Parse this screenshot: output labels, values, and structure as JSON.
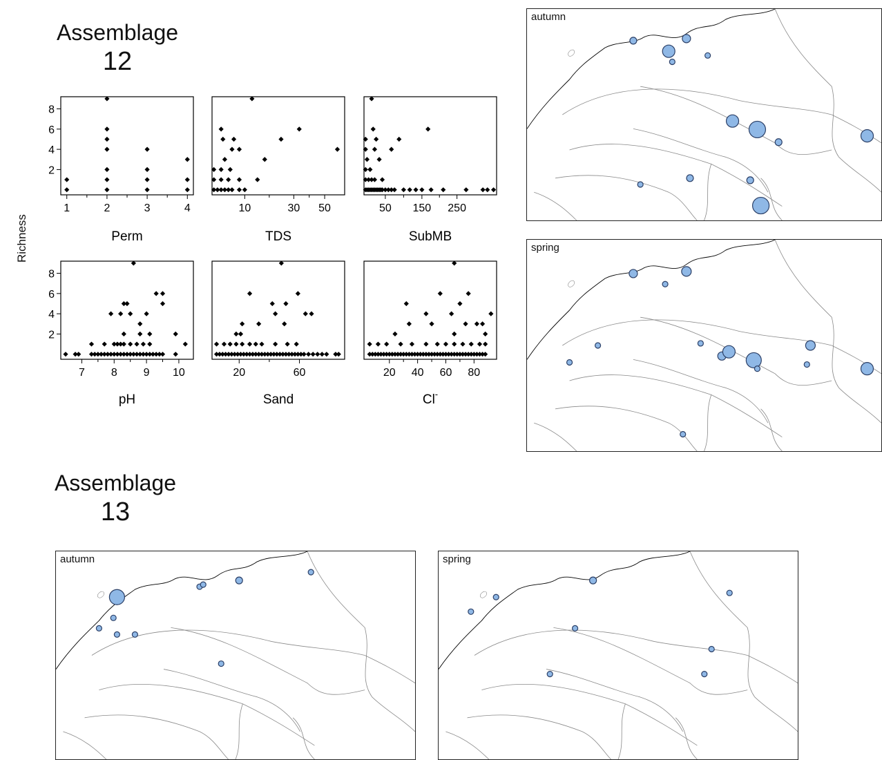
{
  "headings": {
    "a12_word": "Assemblage",
    "a12_num": "12",
    "a13_word": "Assemblage",
    "a13_num": "13"
  },
  "shared_ylabel": "Richness",
  "colors": {
    "point": "#000000",
    "bubble_fill": "#8fb8e6",
    "bubble_stroke": "#2b3f66",
    "coast": "#000000",
    "river": "#888888"
  },
  "chart_data": [
    {
      "type": "scatter",
      "xlabel": "Perm",
      "ylabel": "Richness",
      "xlim": [
        0.85,
        4.15
      ],
      "ylim": [
        -0.5,
        9.2
      ],
      "xticks": [
        "1",
        "2",
        "3",
        "4"
      ],
      "xtick_vals": [
        1,
        2,
        3,
        4
      ],
      "yticks": [
        "2",
        "4",
        "6",
        "8"
      ],
      "ytick_vals": [
        2,
        4,
        6,
        8
      ],
      "points": [
        [
          1,
          0
        ],
        [
          1,
          1
        ],
        [
          2,
          0
        ],
        [
          2,
          1
        ],
        [
          2,
          2
        ],
        [
          2,
          4
        ],
        [
          2,
          5
        ],
        [
          2,
          6
        ],
        [
          2,
          9
        ],
        [
          3,
          0
        ],
        [
          3,
          1
        ],
        [
          3,
          2
        ],
        [
          3,
          4
        ],
        [
          4,
          0
        ],
        [
          4,
          1
        ],
        [
          4,
          3
        ]
      ]
    },
    {
      "type": "scatter",
      "xlabel": "TDS",
      "ylabel": "Richness",
      "xlim": [
        0.5,
        7.8
      ],
      "ylim": [
        -0.5,
        9.2
      ],
      "xticks": [
        "10",
        "30",
        "50"
      ],
      "xtick_vals": [
        2.3,
        5.0,
        6.7
      ],
      "yticks": [
        "2",
        "4",
        "6",
        "8"
      ],
      "ytick_vals": [
        2,
        4,
        6,
        8
      ],
      "points": [
        [
          0.6,
          0
        ],
        [
          0.8,
          0
        ],
        [
          1.0,
          0
        ],
        [
          1.2,
          0
        ],
        [
          1.4,
          0
        ],
        [
          1.6,
          0
        ],
        [
          2.0,
          0
        ],
        [
          2.3,
          0
        ],
        [
          0.6,
          1
        ],
        [
          1.0,
          1
        ],
        [
          1.4,
          1
        ],
        [
          2.0,
          1
        ],
        [
          3.0,
          1
        ],
        [
          0.6,
          2
        ],
        [
          1.0,
          2
        ],
        [
          1.5,
          2
        ],
        [
          1.2,
          3
        ],
        [
          3.4,
          3
        ],
        [
          1.6,
          4
        ],
        [
          2.0,
          4
        ],
        [
          1.1,
          5
        ],
        [
          1.7,
          5
        ],
        [
          4.3,
          5
        ],
        [
          1.0,
          6
        ],
        [
          5.3,
          6
        ],
        [
          7.4,
          4
        ],
        [
          2.7,
          9
        ]
      ]
    },
    {
      "type": "scatter",
      "xlabel": "SubMB",
      "ylabel": "Richness",
      "xlim": [
        0.6,
        9.3
      ],
      "ylim": [
        -0.5,
        9.2
      ],
      "xticks": [
        "50",
        "150",
        "250"
      ],
      "xtick_vals": [
        2.0,
        4.4,
        6.7
      ],
      "yticks": [
        "2",
        "4",
        "6",
        "8"
      ],
      "ytick_vals": [
        2,
        4,
        6,
        8
      ],
      "points": [
        [
          0.7,
          0
        ],
        [
          0.8,
          0
        ],
        [
          0.9,
          0
        ],
        [
          1.0,
          0
        ],
        [
          1.1,
          0
        ],
        [
          1.2,
          0
        ],
        [
          1.3,
          0
        ],
        [
          1.4,
          0
        ],
        [
          1.5,
          0
        ],
        [
          1.6,
          0
        ],
        [
          1.7,
          0
        ],
        [
          1.8,
          0
        ],
        [
          2.0,
          0
        ],
        [
          2.2,
          0
        ],
        [
          2.4,
          0
        ],
        [
          2.6,
          0
        ],
        [
          3.2,
          0
        ],
        [
          3.6,
          0
        ],
        [
          4.0,
          0
        ],
        [
          4.4,
          0
        ],
        [
          5.0,
          0
        ],
        [
          5.8,
          0
        ],
        [
          7.3,
          0
        ],
        [
          8.4,
          0
        ],
        [
          8.7,
          0
        ],
        [
          9.1,
          0
        ],
        [
          0.7,
          1
        ],
        [
          0.9,
          1
        ],
        [
          1.1,
          1
        ],
        [
          1.3,
          1
        ],
        [
          1.8,
          1
        ],
        [
          0.7,
          2
        ],
        [
          1.0,
          2
        ],
        [
          0.8,
          3
        ],
        [
          1.6,
          3
        ],
        [
          0.7,
          4
        ],
        [
          1.3,
          4
        ],
        [
          2.4,
          4
        ],
        [
          0.7,
          5
        ],
        [
          1.4,
          5
        ],
        [
          2.9,
          5
        ],
        [
          1.2,
          6
        ],
        [
          4.8,
          6
        ],
        [
          1.1,
          9
        ]
      ]
    },
    {
      "type": "scatter",
      "xlabel": "pH",
      "ylabel": "Richness",
      "xlim": [
        6.35,
        10.45
      ],
      "ylim": [
        -0.5,
        9.2
      ],
      "xticks": [
        "7",
        "8",
        "9",
        "10"
      ],
      "xtick_vals": [
        7,
        8,
        9,
        10
      ],
      "yticks": [
        "2",
        "4",
        "6",
        "8"
      ],
      "ytick_vals": [
        2,
        4,
        6,
        8
      ],
      "points": [
        [
          6.5,
          0
        ],
        [
          6.8,
          0
        ],
        [
          6.9,
          0
        ],
        [
          7.3,
          0
        ],
        [
          7.4,
          0
        ],
        [
          7.5,
          0
        ],
        [
          7.6,
          0
        ],
        [
          7.7,
          0
        ],
        [
          7.8,
          0
        ],
        [
          7.9,
          0
        ],
        [
          8.0,
          0
        ],
        [
          8.1,
          0
        ],
        [
          8.2,
          0
        ],
        [
          8.3,
          0
        ],
        [
          8.4,
          0
        ],
        [
          8.5,
          0
        ],
        [
          8.6,
          0
        ],
        [
          8.7,
          0
        ],
        [
          8.8,
          0
        ],
        [
          8.9,
          0
        ],
        [
          9.0,
          0
        ],
        [
          9.1,
          0
        ],
        [
          9.2,
          0
        ],
        [
          9.3,
          0
        ],
        [
          9.4,
          0
        ],
        [
          9.5,
          0
        ],
        [
          9.9,
          0
        ],
        [
          7.3,
          1
        ],
        [
          7.7,
          1
        ],
        [
          8.0,
          1
        ],
        [
          8.1,
          1
        ],
        [
          8.2,
          1
        ],
        [
          8.3,
          1
        ],
        [
          8.5,
          1
        ],
        [
          8.7,
          1
        ],
        [
          8.9,
          1
        ],
        [
          9.1,
          1
        ],
        [
          10.2,
          1
        ],
        [
          8.3,
          2
        ],
        [
          8.8,
          2
        ],
        [
          9.1,
          2
        ],
        [
          9.9,
          2
        ],
        [
          8.8,
          3
        ],
        [
          7.9,
          4
        ],
        [
          8.2,
          4
        ],
        [
          8.5,
          4
        ],
        [
          9.0,
          4
        ],
        [
          8.3,
          5
        ],
        [
          8.4,
          5
        ],
        [
          9.5,
          5
        ],
        [
          9.3,
          6
        ],
        [
          9.5,
          6
        ],
        [
          8.6,
          9
        ]
      ]
    },
    {
      "type": "scatter",
      "xlabel": "Sand",
      "ylabel": "Richness",
      "xlim": [
        2,
        90
      ],
      "ylim": [
        -0.5,
        9.2
      ],
      "xticks": [
        "20",
        "60"
      ],
      "xtick_vals": [
        20,
        60
      ],
      "yticks": [
        "2",
        "4",
        "6",
        "8"
      ],
      "ytick_vals": [
        2,
        4,
        6,
        8
      ],
      "points": [
        [
          5,
          0
        ],
        [
          7,
          0
        ],
        [
          9,
          0
        ],
        [
          11,
          0
        ],
        [
          13,
          0
        ],
        [
          15,
          0
        ],
        [
          17,
          0
        ],
        [
          19,
          0
        ],
        [
          21,
          0
        ],
        [
          23,
          0
        ],
        [
          25,
          0
        ],
        [
          27,
          0
        ],
        [
          29,
          0
        ],
        [
          31,
          0
        ],
        [
          33,
          0
        ],
        [
          35,
          0
        ],
        [
          37,
          0
        ],
        [
          39,
          0
        ],
        [
          41,
          0
        ],
        [
          43,
          0
        ],
        [
          45,
          0
        ],
        [
          47,
          0
        ],
        [
          49,
          0
        ],
        [
          51,
          0
        ],
        [
          53,
          0
        ],
        [
          55,
          0
        ],
        [
          57,
          0
        ],
        [
          59,
          0
        ],
        [
          61,
          0
        ],
        [
          63,
          0
        ],
        [
          66,
          0
        ],
        [
          69,
          0
        ],
        [
          72,
          0
        ],
        [
          75,
          0
        ],
        [
          78,
          0
        ],
        [
          84,
          0
        ],
        [
          86,
          0
        ],
        [
          5,
          1
        ],
        [
          10,
          1
        ],
        [
          14,
          1
        ],
        [
          18,
          1
        ],
        [
          22,
          1
        ],
        [
          27,
          1
        ],
        [
          31,
          1
        ],
        [
          35,
          1
        ],
        [
          44,
          1
        ],
        [
          52,
          1
        ],
        [
          58,
          1
        ],
        [
          18,
          2
        ],
        [
          21,
          2
        ],
        [
          22,
          3
        ],
        [
          33,
          3
        ],
        [
          50,
          3
        ],
        [
          44,
          4
        ],
        [
          64,
          4
        ],
        [
          68,
          4
        ],
        [
          42,
          5
        ],
        [
          51,
          5
        ],
        [
          27,
          6
        ],
        [
          59,
          6
        ],
        [
          48,
          9
        ]
      ]
    },
    {
      "type": "scatter",
      "xlabel": "Cl",
      "xlabel_sup": "-",
      "ylabel": "Richness",
      "xlim": [
        2,
        96
      ],
      "ylim": [
        -0.5,
        9.2
      ],
      "xticks": [
        "20",
        "40",
        "60",
        "80"
      ],
      "xtick_vals": [
        20,
        40,
        60,
        80
      ],
      "yticks": [
        "2",
        "4",
        "6",
        "8"
      ],
      "ytick_vals": [
        2,
        4,
        6,
        8
      ],
      "points": [
        [
          6,
          0
        ],
        [
          8,
          0
        ],
        [
          10,
          0
        ],
        [
          12,
          0
        ],
        [
          14,
          0
        ],
        [
          16,
          0
        ],
        [
          18,
          0
        ],
        [
          20,
          0
        ],
        [
          22,
          0
        ],
        [
          24,
          0
        ],
        [
          26,
          0
        ],
        [
          28,
          0
        ],
        [
          30,
          0
        ],
        [
          32,
          0
        ],
        [
          34,
          0
        ],
        [
          36,
          0
        ],
        [
          38,
          0
        ],
        [
          40,
          0
        ],
        [
          42,
          0
        ],
        [
          44,
          0
        ],
        [
          46,
          0
        ],
        [
          48,
          0
        ],
        [
          50,
          0
        ],
        [
          52,
          0
        ],
        [
          54,
          0
        ],
        [
          56,
          0
        ],
        [
          58,
          0
        ],
        [
          60,
          0
        ],
        [
          62,
          0
        ],
        [
          64,
          0
        ],
        [
          66,
          0
        ],
        [
          68,
          0
        ],
        [
          70,
          0
        ],
        [
          72,
          0
        ],
        [
          74,
          0
        ],
        [
          76,
          0
        ],
        [
          78,
          0
        ],
        [
          80,
          0
        ],
        [
          82,
          0
        ],
        [
          84,
          0
        ],
        [
          86,
          0
        ],
        [
          88,
          0
        ],
        [
          6,
          1
        ],
        [
          12,
          1
        ],
        [
          18,
          1
        ],
        [
          28,
          1
        ],
        [
          36,
          1
        ],
        [
          46,
          1
        ],
        [
          54,
          1
        ],
        [
          60,
          1
        ],
        [
          66,
          1
        ],
        [
          72,
          1
        ],
        [
          78,
          1
        ],
        [
          84,
          1
        ],
        [
          88,
          1
        ],
        [
          24,
          2
        ],
        [
          66,
          2
        ],
        [
          88,
          2
        ],
        [
          34,
          3
        ],
        [
          50,
          3
        ],
        [
          74,
          3
        ],
        [
          82,
          3
        ],
        [
          86,
          3
        ],
        [
          46,
          4
        ],
        [
          64,
          4
        ],
        [
          92,
          4
        ],
        [
          32,
          5
        ],
        [
          70,
          5
        ],
        [
          56,
          6
        ],
        [
          76,
          6
        ],
        [
          66,
          9
        ]
      ]
    }
  ],
  "maps": [
    {
      "label": "autumn",
      "bubbles": [
        [
          0.3,
          0.15,
          5
        ],
        [
          0.4,
          0.2,
          9
        ],
        [
          0.41,
          0.25,
          4
        ],
        [
          0.45,
          0.14,
          6
        ],
        [
          0.51,
          0.22,
          4
        ],
        [
          0.58,
          0.53,
          9
        ],
        [
          0.65,
          0.57,
          12
        ],
        [
          0.71,
          0.63,
          5
        ],
        [
          0.96,
          0.6,
          9
        ],
        [
          0.32,
          0.83,
          4
        ],
        [
          0.46,
          0.8,
          5
        ],
        [
          0.63,
          0.81,
          5
        ],
        [
          0.66,
          0.93,
          12
        ]
      ]
    },
    {
      "label": "spring",
      "bubbles": [
        [
          0.3,
          0.16,
          6
        ],
        [
          0.39,
          0.21,
          4
        ],
        [
          0.45,
          0.15,
          7
        ],
        [
          0.49,
          0.49,
          4
        ],
        [
          0.55,
          0.55,
          6
        ],
        [
          0.57,
          0.53,
          9
        ],
        [
          0.64,
          0.57,
          11
        ],
        [
          0.65,
          0.61,
          4
        ],
        [
          0.8,
          0.5,
          7
        ],
        [
          0.79,
          0.59,
          4
        ],
        [
          0.96,
          0.61,
          9
        ],
        [
          0.2,
          0.5,
          4
        ],
        [
          0.12,
          0.58,
          4
        ],
        [
          0.44,
          0.92,
          4
        ]
      ]
    },
    {
      "label": "autumn",
      "bubbles": [
        [
          0.17,
          0.22,
          11
        ],
        [
          0.16,
          0.32,
          4
        ],
        [
          0.4,
          0.17,
          4
        ],
        [
          0.41,
          0.16,
          4
        ],
        [
          0.51,
          0.14,
          5
        ],
        [
          0.71,
          0.1,
          4
        ],
        [
          0.12,
          0.37,
          4
        ],
        [
          0.17,
          0.4,
          4
        ],
        [
          0.22,
          0.4,
          4
        ],
        [
          0.46,
          0.54,
          4
        ]
      ]
    },
    {
      "label": "spring",
      "bubbles": [
        [
          0.16,
          0.22,
          4
        ],
        [
          0.09,
          0.29,
          4
        ],
        [
          0.43,
          0.14,
          5
        ],
        [
          0.81,
          0.2,
          4
        ],
        [
          0.38,
          0.37,
          4
        ],
        [
          0.31,
          0.59,
          4
        ],
        [
          0.76,
          0.47,
          4
        ],
        [
          0.74,
          0.59,
          4
        ]
      ]
    }
  ]
}
